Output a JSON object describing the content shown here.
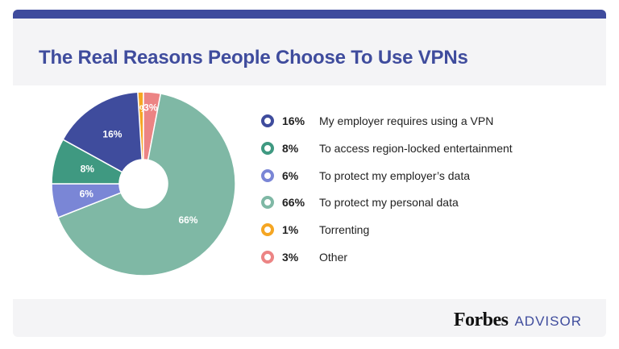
{
  "title": "The Real Reasons People Choose To Use VPNs",
  "brand": {
    "name": "Forbes",
    "sub": "ADVISOR"
  },
  "chart_data": {
    "type": "pie",
    "title": "The Real Reasons People Choose To Use VPNs",
    "slices": [
      {
        "label": "My employer requires using a VPN",
        "value": 16,
        "display": "16%",
        "color": "#3f4c9d",
        "text_color": "#ffffff"
      },
      {
        "label": "To access region-locked entertainment",
        "value": 8,
        "display": "8%",
        "color": "#3f9981",
        "text_color": "#ffffff"
      },
      {
        "label": "To protect my employer’s data",
        "value": 6,
        "display": "6%",
        "color": "#7a86d6",
        "text_color": "#ffffff"
      },
      {
        "label": "To protect my personal data",
        "value": 66,
        "display": "66%",
        "color": "#7fb8a5",
        "text_color": "#ffffff"
      },
      {
        "label": "Torrenting",
        "value": 1,
        "display": "1%",
        "color": "#f5a623",
        "text_color": "#ffffff"
      },
      {
        "label": "Other",
        "value": 3,
        "display": "3%",
        "color": "#ec8484",
        "text_color": "#ffffff"
      }
    ],
    "legend_position": "right"
  }
}
